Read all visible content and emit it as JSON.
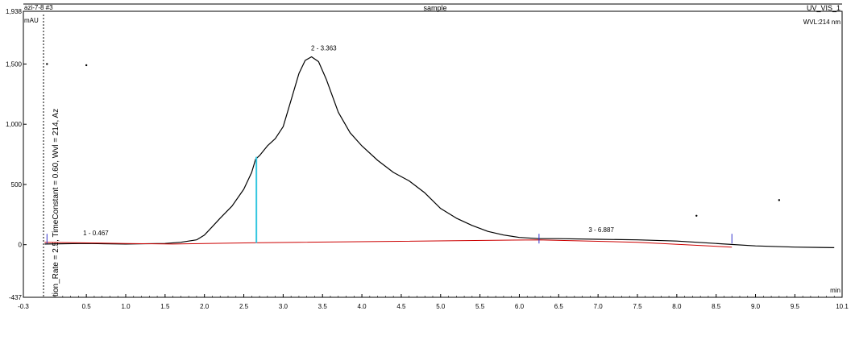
{
  "header": {
    "left": "azi-7-8 #3",
    "center": "sample",
    "right": "UV_VIS_1",
    "wavelength": "WVL:214 nm",
    "y_unit": "mAU",
    "x_unit": "min"
  },
  "vertical_label": "tion_Rate = 2.5, TimeConstant = 0.60, Wvl = 214, Az",
  "chart_data": {
    "type": "line",
    "xlim": [
      -0.3,
      10.1
    ],
    "ylim": [
      -437,
      1938
    ],
    "x_ticks": [
      -0.3,
      0.5,
      1.0,
      1.5,
      2.0,
      2.5,
      3.0,
      3.5,
      4.0,
      4.5,
      5.0,
      5.5,
      6.0,
      6.5,
      7.0,
      7.5,
      8.0,
      8.5,
      9.0,
      9.5,
      10.1
    ],
    "x_tick_labels": [
      "-0.3",
      "0.5",
      "1.0",
      "1.5",
      "2.0",
      "2.5",
      "3.0",
      "3.5",
      "4.0",
      "4.5",
      "5.0",
      "5.5",
      "6.0",
      "6.5",
      "7.0",
      "7.5",
      "8.0",
      "8.5",
      "9.0",
      "9.5",
      "10.1"
    ],
    "y_ticks": [
      -437,
      0,
      500,
      1000,
      1500,
      1938
    ],
    "y_tick_labels": [
      "-437",
      "0",
      "500",
      "1,000",
      "1,500",
      "1,938"
    ],
    "series": [
      {
        "color": "#000000",
        "x": [
          -0.03,
          0.5,
          1.0,
          1.5,
          1.7,
          1.9,
          2.0,
          2.1,
          2.2,
          2.35,
          2.5,
          2.6,
          2.65,
          2.7,
          2.8,
          2.9,
          3.0,
          3.1,
          3.2,
          3.28,
          3.36,
          3.45,
          3.55,
          3.7,
          3.85,
          4.0,
          4.2,
          4.4,
          4.6,
          4.8,
          5.0,
          5.2,
          5.4,
          5.6,
          5.8,
          6.0,
          6.25,
          6.5,
          7.0,
          7.5,
          8.0,
          8.5,
          9.0,
          9.5,
          10.0
        ],
        "y": [
          5,
          10,
          5,
          10,
          20,
          40,
          80,
          150,
          220,
          320,
          460,
          600,
          710,
          740,
          820,
          880,
          980,
          1200,
          1420,
          1530,
          1560,
          1520,
          1370,
          1100,
          930,
          820,
          700,
          600,
          530,
          430,
          300,
          220,
          160,
          110,
          80,
          60,
          50,
          50,
          45,
          40,
          30,
          10,
          -10,
          -20,
          -25
        ]
      },
      {
        "color": "#cc0000",
        "x": [
          -0.03,
          1.0,
          1.6,
          2.6,
          6.25,
          7.5,
          8.7
        ],
        "y": [
          20,
          10,
          5,
          15,
          40,
          20,
          -20
        ]
      }
    ],
    "peaks": [
      {
        "label": "1 - 0.467",
        "x": 0.467,
        "y": 25
      },
      {
        "label": "2 - 3.363",
        "x": 3.363,
        "y": 1560
      },
      {
        "label": "3 - 6.887",
        "x": 6.887,
        "y": 50
      }
    ],
    "integration_markers": [
      0.0,
      6.25,
      8.7
    ],
    "drop_line": {
      "x": 2.66,
      "y_bottom": 15,
      "y_top": 730,
      "color": "#33c6e0"
    },
    "dots": [
      {
        "x": 0.0,
        "y": 1500
      },
      {
        "x": 0.5,
        "y": 1490
      },
      {
        "x": 8.25,
        "y": 240
      },
      {
        "x": 9.3,
        "y": 370
      }
    ],
    "grid": false
  }
}
